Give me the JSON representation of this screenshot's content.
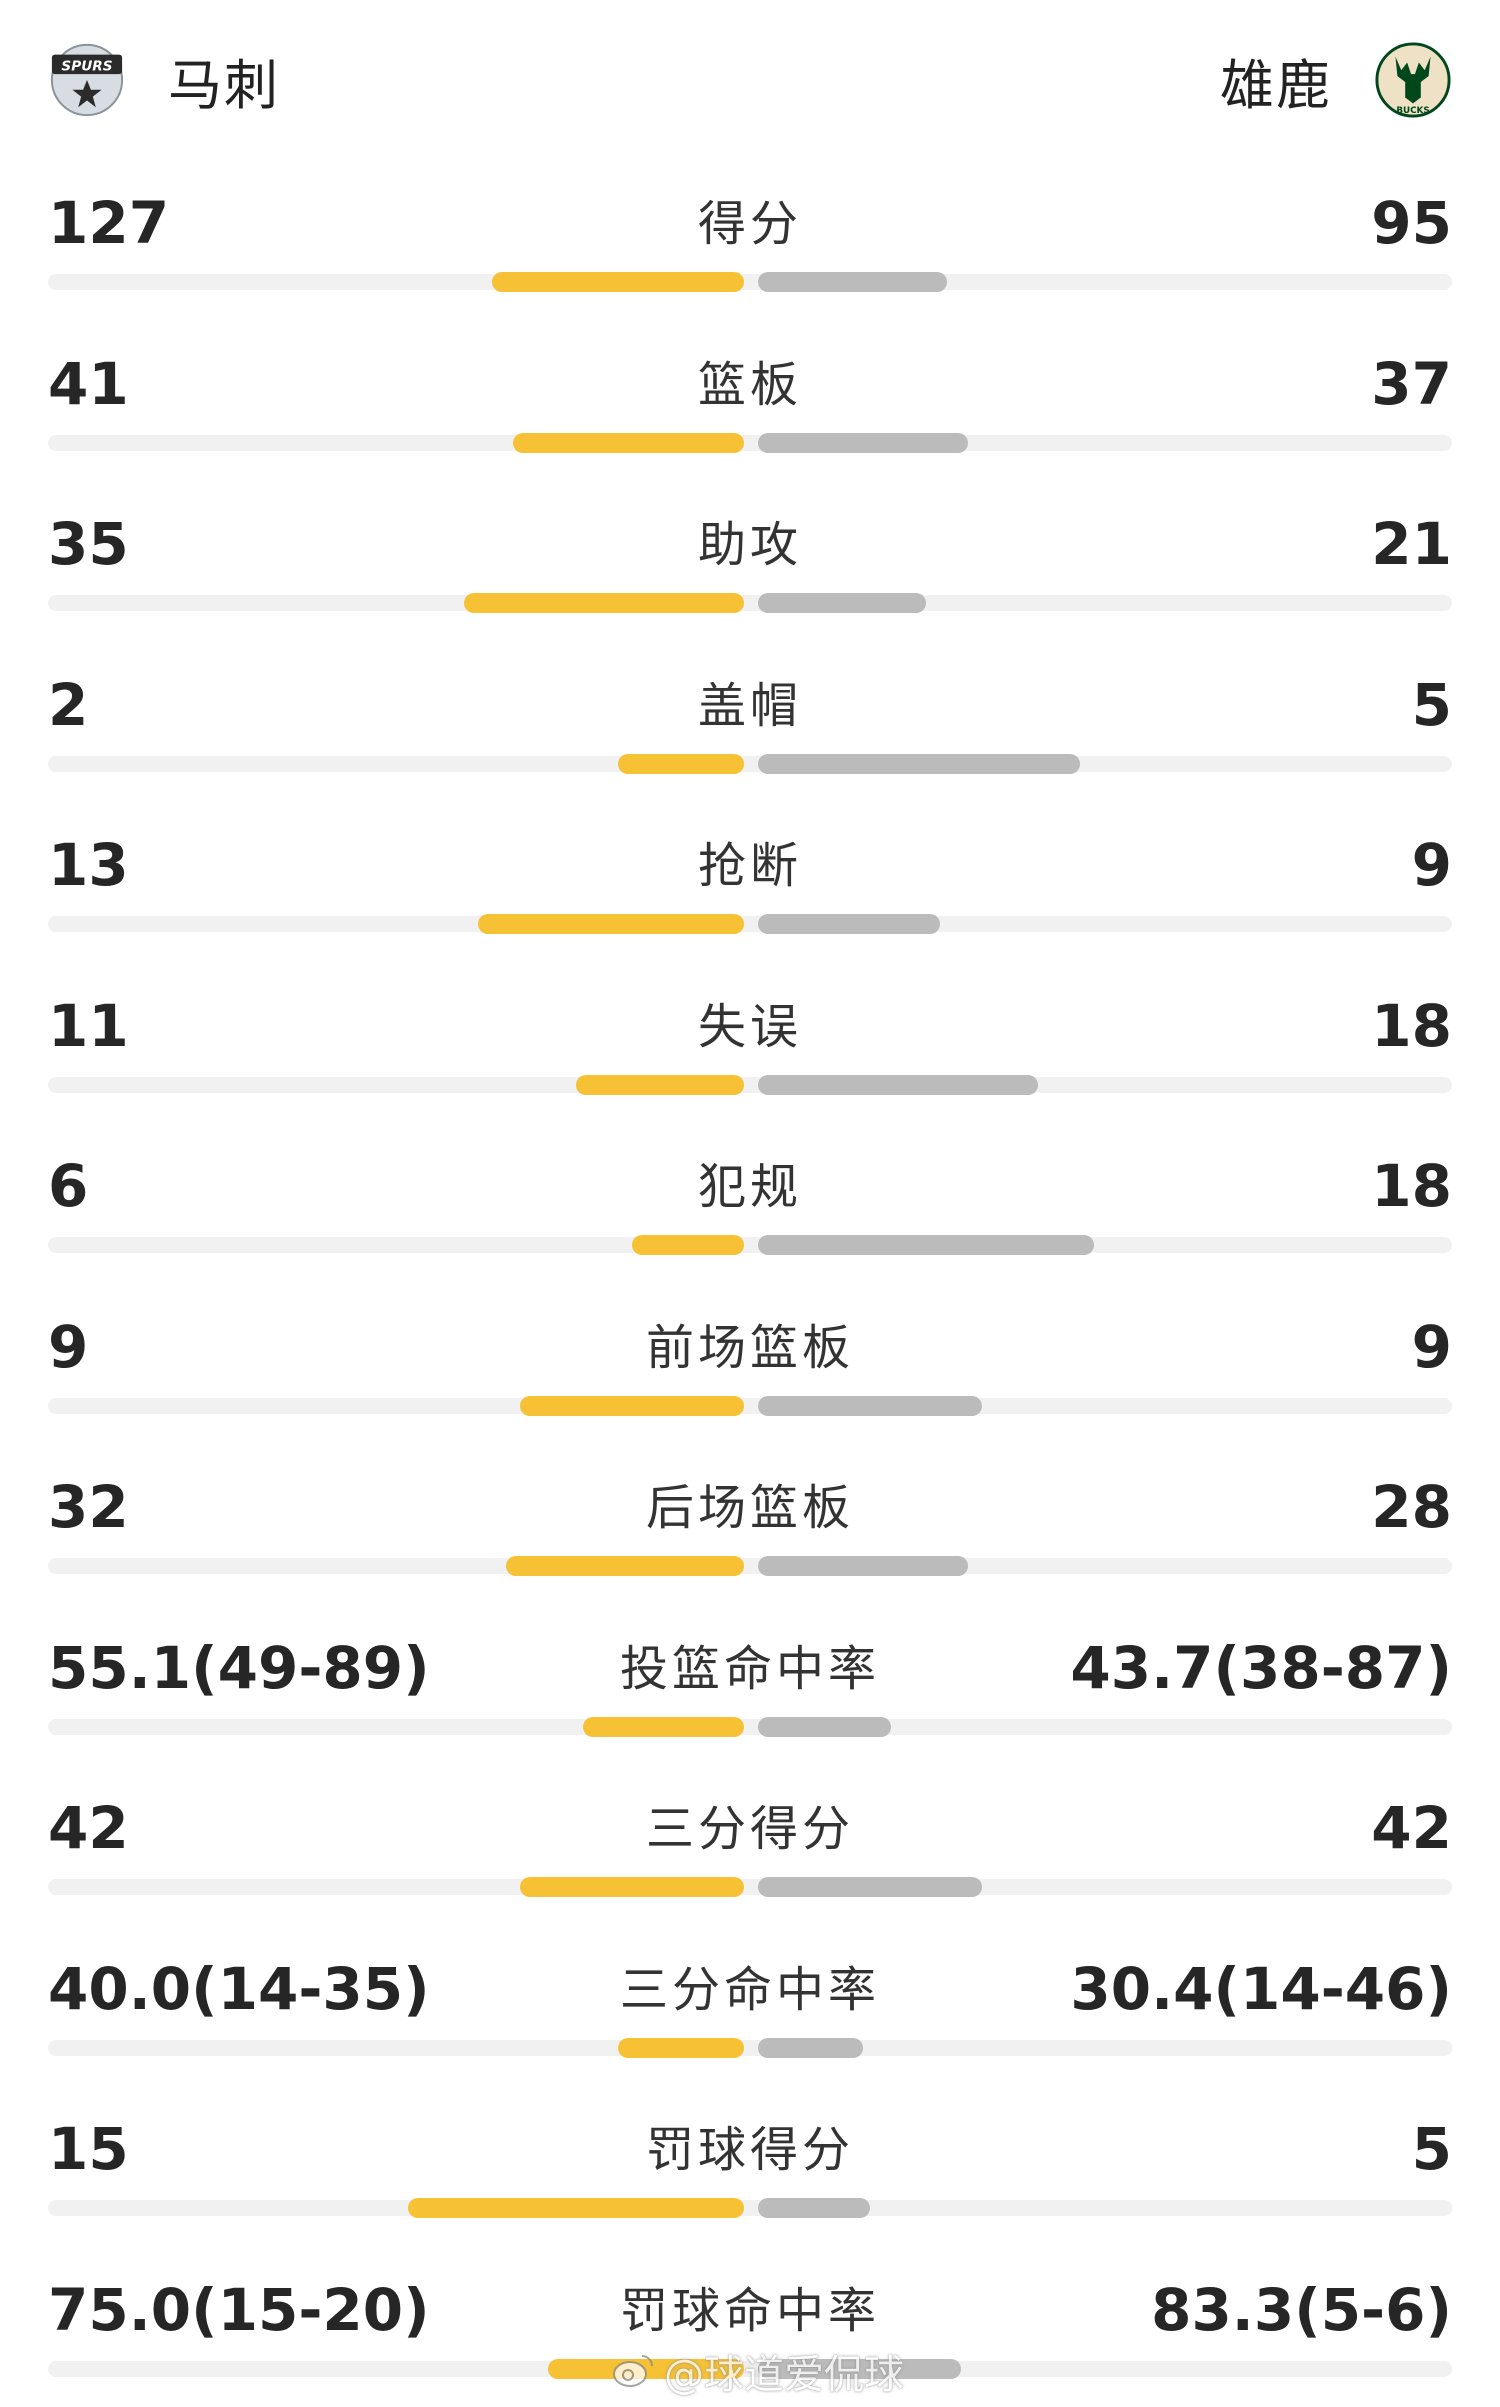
{
  "header": {
    "home": {
      "name": "马刺",
      "logo_icon": "spurs-logo-icon",
      "logo_text": "SPURS"
    },
    "away": {
      "name": "雄鹿",
      "logo_icon": "bucks-logo-icon",
      "logo_text": "BUCKS"
    }
  },
  "colors": {
    "home_bar": "#f7c136",
    "away_bar": "#bbbbbb",
    "track": "#f1f1f1"
  },
  "stats": [
    {
      "label": "得分",
      "home": "127",
      "away": "95",
      "home_fill": 0.36,
      "away_fill": 0.27
    },
    {
      "label": "篮板",
      "home": "41",
      "away": "37",
      "home_fill": 0.33,
      "away_fill": 0.3
    },
    {
      "label": "助攻",
      "home": "35",
      "away": "21",
      "home_fill": 0.4,
      "away_fill": 0.24
    },
    {
      "label": "盖帽",
      "home": "2",
      "away": "5",
      "home_fill": 0.18,
      "away_fill": 0.46
    },
    {
      "label": "抢断",
      "home": "13",
      "away": "9",
      "home_fill": 0.38,
      "away_fill": 0.26
    },
    {
      "label": "失误",
      "home": "11",
      "away": "18",
      "home_fill": 0.24,
      "away_fill": 0.4
    },
    {
      "label": "犯规",
      "home": "6",
      "away": "18",
      "home_fill": 0.16,
      "away_fill": 0.48
    },
    {
      "label": "前场篮板",
      "home": "9",
      "away": "9",
      "home_fill": 0.32,
      "away_fill": 0.32
    },
    {
      "label": "后场篮板",
      "home": "32",
      "away": "28",
      "home_fill": 0.34,
      "away_fill": 0.3
    },
    {
      "label": "投篮命中率",
      "home": "55.1(49-89)",
      "away": "43.7(38-87)",
      "home_fill": 0.23,
      "away_fill": 0.19
    },
    {
      "label": "三分得分",
      "home": "42",
      "away": "42",
      "home_fill": 0.32,
      "away_fill": 0.32
    },
    {
      "label": "三分命中率",
      "home": "40.0(14-35)",
      "away": "30.4(14-46)",
      "home_fill": 0.18,
      "away_fill": 0.15
    },
    {
      "label": "罚球得分",
      "home": "15",
      "away": "5",
      "home_fill": 0.48,
      "away_fill": 0.16
    },
    {
      "label": "罚球命中率",
      "home": "75.0(15-20)",
      "away": "83.3(5-6)",
      "home_fill": 0.28,
      "away_fill": 0.29
    }
  ],
  "watermark": {
    "text": "@球道爱侃球",
    "icon": "weibo-icon"
  }
}
